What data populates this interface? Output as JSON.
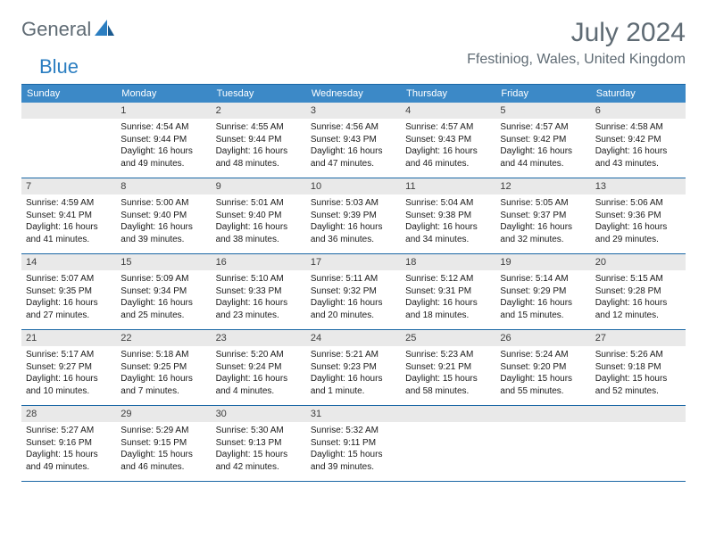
{
  "logo": {
    "text1": "General",
    "text2": "Blue"
  },
  "title": "July 2024",
  "location": "Ffestiniog, Wales, United Kingdom",
  "colors": {
    "header_bg": "#3c89c7",
    "header_text": "#ffffff",
    "rule": "#1a67a5",
    "daynum_bg": "#e9e9e9",
    "body_text": "#1a1a1a",
    "title_text": "#5f6b74"
  },
  "day_headers": [
    "Sunday",
    "Monday",
    "Tuesday",
    "Wednesday",
    "Thursday",
    "Friday",
    "Saturday"
  ],
  "weeks": [
    [
      {
        "n": "",
        "sr": "",
        "ss": "",
        "dl": ""
      },
      {
        "n": "1",
        "sr": "Sunrise: 4:54 AM",
        "ss": "Sunset: 9:44 PM",
        "dl": "Daylight: 16 hours and 49 minutes."
      },
      {
        "n": "2",
        "sr": "Sunrise: 4:55 AM",
        "ss": "Sunset: 9:44 PM",
        "dl": "Daylight: 16 hours and 48 minutes."
      },
      {
        "n": "3",
        "sr": "Sunrise: 4:56 AM",
        "ss": "Sunset: 9:43 PM",
        "dl": "Daylight: 16 hours and 47 minutes."
      },
      {
        "n": "4",
        "sr": "Sunrise: 4:57 AM",
        "ss": "Sunset: 9:43 PM",
        "dl": "Daylight: 16 hours and 46 minutes."
      },
      {
        "n": "5",
        "sr": "Sunrise: 4:57 AM",
        "ss": "Sunset: 9:42 PM",
        "dl": "Daylight: 16 hours and 44 minutes."
      },
      {
        "n": "6",
        "sr": "Sunrise: 4:58 AM",
        "ss": "Sunset: 9:42 PM",
        "dl": "Daylight: 16 hours and 43 minutes."
      }
    ],
    [
      {
        "n": "7",
        "sr": "Sunrise: 4:59 AM",
        "ss": "Sunset: 9:41 PM",
        "dl": "Daylight: 16 hours and 41 minutes."
      },
      {
        "n": "8",
        "sr": "Sunrise: 5:00 AM",
        "ss": "Sunset: 9:40 PM",
        "dl": "Daylight: 16 hours and 39 minutes."
      },
      {
        "n": "9",
        "sr": "Sunrise: 5:01 AM",
        "ss": "Sunset: 9:40 PM",
        "dl": "Daylight: 16 hours and 38 minutes."
      },
      {
        "n": "10",
        "sr": "Sunrise: 5:03 AM",
        "ss": "Sunset: 9:39 PM",
        "dl": "Daylight: 16 hours and 36 minutes."
      },
      {
        "n": "11",
        "sr": "Sunrise: 5:04 AM",
        "ss": "Sunset: 9:38 PM",
        "dl": "Daylight: 16 hours and 34 minutes."
      },
      {
        "n": "12",
        "sr": "Sunrise: 5:05 AM",
        "ss": "Sunset: 9:37 PM",
        "dl": "Daylight: 16 hours and 32 minutes."
      },
      {
        "n": "13",
        "sr": "Sunrise: 5:06 AM",
        "ss": "Sunset: 9:36 PM",
        "dl": "Daylight: 16 hours and 29 minutes."
      }
    ],
    [
      {
        "n": "14",
        "sr": "Sunrise: 5:07 AM",
        "ss": "Sunset: 9:35 PM",
        "dl": "Daylight: 16 hours and 27 minutes."
      },
      {
        "n": "15",
        "sr": "Sunrise: 5:09 AM",
        "ss": "Sunset: 9:34 PM",
        "dl": "Daylight: 16 hours and 25 minutes."
      },
      {
        "n": "16",
        "sr": "Sunrise: 5:10 AM",
        "ss": "Sunset: 9:33 PM",
        "dl": "Daylight: 16 hours and 23 minutes."
      },
      {
        "n": "17",
        "sr": "Sunrise: 5:11 AM",
        "ss": "Sunset: 9:32 PM",
        "dl": "Daylight: 16 hours and 20 minutes."
      },
      {
        "n": "18",
        "sr": "Sunrise: 5:12 AM",
        "ss": "Sunset: 9:31 PM",
        "dl": "Daylight: 16 hours and 18 minutes."
      },
      {
        "n": "19",
        "sr": "Sunrise: 5:14 AM",
        "ss": "Sunset: 9:29 PM",
        "dl": "Daylight: 16 hours and 15 minutes."
      },
      {
        "n": "20",
        "sr": "Sunrise: 5:15 AM",
        "ss": "Sunset: 9:28 PM",
        "dl": "Daylight: 16 hours and 12 minutes."
      }
    ],
    [
      {
        "n": "21",
        "sr": "Sunrise: 5:17 AM",
        "ss": "Sunset: 9:27 PM",
        "dl": "Daylight: 16 hours and 10 minutes."
      },
      {
        "n": "22",
        "sr": "Sunrise: 5:18 AM",
        "ss": "Sunset: 9:25 PM",
        "dl": "Daylight: 16 hours and 7 minutes."
      },
      {
        "n": "23",
        "sr": "Sunrise: 5:20 AM",
        "ss": "Sunset: 9:24 PM",
        "dl": "Daylight: 16 hours and 4 minutes."
      },
      {
        "n": "24",
        "sr": "Sunrise: 5:21 AM",
        "ss": "Sunset: 9:23 PM",
        "dl": "Daylight: 16 hours and 1 minute."
      },
      {
        "n": "25",
        "sr": "Sunrise: 5:23 AM",
        "ss": "Sunset: 9:21 PM",
        "dl": "Daylight: 15 hours and 58 minutes."
      },
      {
        "n": "26",
        "sr": "Sunrise: 5:24 AM",
        "ss": "Sunset: 9:20 PM",
        "dl": "Daylight: 15 hours and 55 minutes."
      },
      {
        "n": "27",
        "sr": "Sunrise: 5:26 AM",
        "ss": "Sunset: 9:18 PM",
        "dl": "Daylight: 15 hours and 52 minutes."
      }
    ],
    [
      {
        "n": "28",
        "sr": "Sunrise: 5:27 AM",
        "ss": "Sunset: 9:16 PM",
        "dl": "Daylight: 15 hours and 49 minutes."
      },
      {
        "n": "29",
        "sr": "Sunrise: 5:29 AM",
        "ss": "Sunset: 9:15 PM",
        "dl": "Daylight: 15 hours and 46 minutes."
      },
      {
        "n": "30",
        "sr": "Sunrise: 5:30 AM",
        "ss": "Sunset: 9:13 PM",
        "dl": "Daylight: 15 hours and 42 minutes."
      },
      {
        "n": "31",
        "sr": "Sunrise: 5:32 AM",
        "ss": "Sunset: 9:11 PM",
        "dl": "Daylight: 15 hours and 39 minutes."
      },
      {
        "n": "",
        "sr": "",
        "ss": "",
        "dl": ""
      },
      {
        "n": "",
        "sr": "",
        "ss": "",
        "dl": ""
      },
      {
        "n": "",
        "sr": "",
        "ss": "",
        "dl": ""
      }
    ]
  ]
}
